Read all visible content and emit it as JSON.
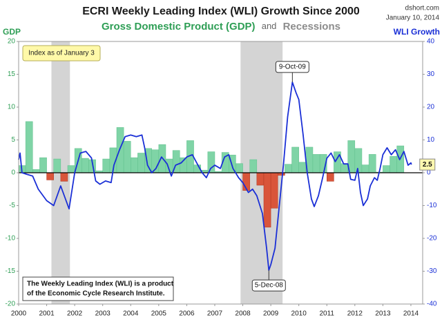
{
  "chart_data": {
    "type": "bar_line",
    "title": "ECRI Weekly Leading Index (WLI) Growth Since 2000",
    "subtitle_joiner": "and",
    "source": "dshort.com",
    "date": "January 10, 2014",
    "ylabel": "GDP",
    "y2label": "WLI Growth",
    "xlim": [
      2000,
      2014.42
    ],
    "xticks": [
      2000,
      2001,
      2002,
      2003,
      2004,
      2005,
      2006,
      2007,
      2008,
      2009,
      2010,
      2011,
      2012,
      2013,
      2014
    ],
    "ylim": [
      -20,
      20
    ],
    "yticks": [
      -20,
      -15,
      -10,
      -5,
      0,
      5,
      10,
      15,
      20
    ],
    "y2lim": [
      -40,
      40
    ],
    "y2ticks": [
      -40,
      -30,
      -20,
      -10,
      0,
      10,
      20,
      30,
      40
    ],
    "recessions": {
      "name": "Recessions",
      "color": "#d4d4d4",
      "spans": [
        [
          2001.17,
          2001.83
        ],
        [
          2007.92,
          2009.42
        ]
      ]
    },
    "series": [
      {
        "name": "Gross Domestic Product (GDP)",
        "type": "bar",
        "color": "#7fd4a6",
        "negative_color": "#d9553a",
        "x": [
          2000,
          2000.25,
          2000.5,
          2000.75,
          2001,
          2001.25,
          2001.5,
          2001.75,
          2002,
          2002.25,
          2002.5,
          2002.75,
          2003,
          2003.25,
          2003.5,
          2003.75,
          2004,
          2004.25,
          2004.5,
          2004.75,
          2005,
          2005.25,
          2005.5,
          2005.75,
          2006,
          2006.25,
          2006.5,
          2006.75,
          2007,
          2007.25,
          2007.5,
          2007.75,
          2008,
          2008.25,
          2008.5,
          2008.75,
          2009,
          2009.25,
          2009.5,
          2009.75,
          2010,
          2010.25,
          2010.5,
          2010.75,
          2011,
          2011.25,
          2011.5,
          2011.75,
          2012,
          2012.25,
          2012.5,
          2012.75,
          2013,
          2013.25,
          2013.5
        ],
        "values": [
          1.1,
          7.8,
          0.5,
          2.3,
          -1.1,
          2.1,
          -1.3,
          1.1,
          3.7,
          2.2,
          2.0,
          0.3,
          2.1,
          3.8,
          6.9,
          4.8,
          2.3,
          3.0,
          3.7,
          3.5,
          4.3,
          2.1,
          3.4,
          2.3,
          4.9,
          1.2,
          0.4,
          3.2,
          0.2,
          3.1,
          2.7,
          1.4,
          -2.7,
          2.0,
          -1.9,
          -8.3,
          -5.4,
          -0.4,
          1.3,
          3.9,
          1.6,
          3.9,
          2.8,
          2.8,
          -1.3,
          3.2,
          1.4,
          4.9,
          3.7,
          1.2,
          2.8,
          0.1,
          1.1,
          2.5,
          4.1
        ]
      },
      {
        "type": "line",
        "axis": "y2",
        "color": "#1a2fd6",
        "x": [
          2000.0,
          2000.05,
          2000.12,
          2000.3,
          2000.5,
          2000.7,
          2001.0,
          2001.25,
          2001.5,
          2001.8,
          2002.0,
          2002.2,
          2002.4,
          2002.6,
          2002.75,
          2002.9,
          2003.1,
          2003.3,
          2003.4,
          2003.6,
          2003.8,
          2004.0,
          2004.2,
          2004.4,
          2004.5,
          2004.6,
          2004.75,
          2004.9,
          2005.1,
          2005.3,
          2005.45,
          2005.6,
          2005.8,
          2006.0,
          2006.2,
          2006.4,
          2006.55,
          2006.7,
          2006.85,
          2007.0,
          2007.2,
          2007.35,
          2007.5,
          2007.65,
          2007.85,
          2008.0,
          2008.2,
          2008.35,
          2008.5,
          2008.7,
          2008.85,
          2008.93,
          2009.0,
          2009.15,
          2009.3,
          2009.45,
          2009.6,
          2009.77,
          2009.9,
          2010.0,
          2010.15,
          2010.3,
          2010.45,
          2010.55,
          2010.7,
          2010.85,
          2011.0,
          2011.15,
          2011.3,
          2011.45,
          2011.6,
          2011.75,
          2011.85,
          2012.0,
          2012.1,
          2012.2,
          2012.3,
          2012.45,
          2012.55,
          2012.7,
          2012.8,
          2012.9,
          2013.0,
          2013.15,
          2013.3,
          2013.45,
          2013.6,
          2013.75,
          2013.9,
          2014.0,
          2014.02
        ],
        "values": [
          4,
          6,
          0,
          -0.5,
          -1,
          -5,
          -8.5,
          -10,
          -4,
          -11,
          0,
          6,
          6.5,
          4.5,
          -2.5,
          -3.5,
          -2.5,
          -3,
          2.3,
          7,
          11,
          11.5,
          11,
          11.5,
          7.5,
          2.3,
          0,
          1.3,
          4.8,
          2.7,
          -1,
          2.3,
          3,
          4.8,
          5.5,
          2.3,
          0,
          -1.5,
          1.3,
          2.3,
          1.3,
          4.8,
          5.5,
          1.3,
          -1.5,
          -3,
          -6,
          -5,
          -7,
          -12.4,
          -23,
          -29.7,
          -28,
          -23,
          -10.3,
          2.3,
          17,
          27.6,
          24.4,
          22.3,
          11.8,
          0,
          -8,
          -10.3,
          -7,
          -1.5,
          4.4,
          6,
          3.4,
          5.5,
          2.7,
          2.7,
          -2,
          -2.3,
          1.3,
          -6,
          -10,
          -8,
          -4,
          -1.5,
          -2.3,
          1.3,
          5.5,
          7.6,
          5.5,
          7,
          4,
          6.5,
          2.3,
          3,
          2.5
        ]
      }
    ],
    "callouts": [
      {
        "label": "9-Oct-09",
        "x": 2009.77,
        "y": 27.6,
        "side": "above"
      },
      {
        "label": "5-Dec-08",
        "x": 2008.93,
        "y": -29.7,
        "side": "below"
      }
    ],
    "last_value": {
      "x": 2014.02,
      "y": 2.5
    },
    "index_note": "Index as of January 3",
    "note": [
      "The Weekly Leading Index (WLI) is a product",
      "of the Economic Cycle Research Institute."
    ]
  }
}
